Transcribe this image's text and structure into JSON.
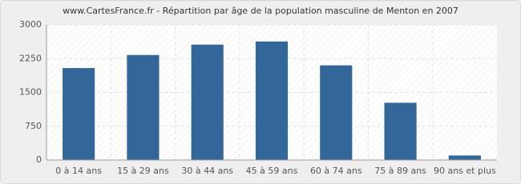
{
  "chart_data": {
    "type": "bar",
    "title": "www.CartesFrance.fr - Répartition par âge de la population masculine de Menton en 2007",
    "categories": [
      "0 à 14 ans",
      "15 à 29 ans",
      "30 à 44 ans",
      "45 à 59 ans",
      "60 à 74 ans",
      "75 à 89 ans",
      "90 ans et plus"
    ],
    "values": [
      2040,
      2330,
      2560,
      2630,
      2100,
      1270,
      100
    ],
    "color": "#336699",
    "ylim": [
      0,
      3000
    ],
    "yticks": [
      0,
      750,
      1500,
      2250,
      3000
    ],
    "grid": true
  }
}
